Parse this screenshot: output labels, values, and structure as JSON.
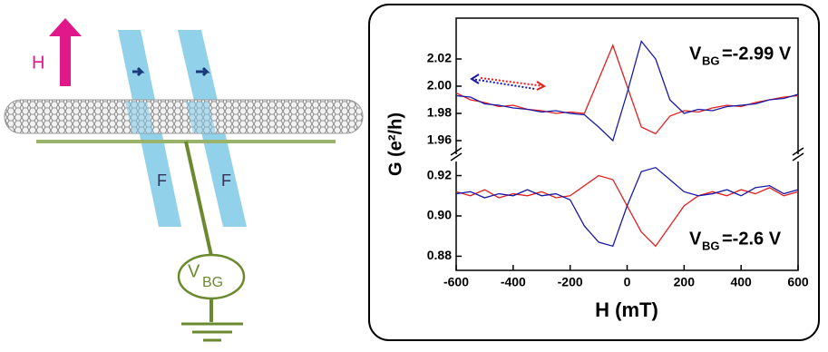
{
  "diagram": {
    "field_label": "H",
    "electrode_labels": [
      "F",
      "F"
    ],
    "gate_label": "V",
    "gate_subscript": "BG"
  },
  "chart_data": {
    "type": "line",
    "xlabel": "H (mT)",
    "ylabel": "G (e²/h)",
    "x": [
      -600,
      -550,
      -500,
      -450,
      -400,
      -350,
      -300,
      -250,
      -200,
      -150,
      -100,
      -50,
      0,
      50,
      100,
      150,
      200,
      250,
      300,
      350,
      400,
      450,
      500,
      550,
      600
    ],
    "xlim": [
      -600,
      600
    ],
    "xticks": [
      -600,
      -400,
      -200,
      0,
      200,
      400,
      600
    ],
    "panels": [
      {
        "ylim": [
          1.95,
          2.05
        ],
        "yticks": [
          1.96,
          1.98,
          {
            "value": 2,
            "label": "2.00"
          },
          2.02
        ],
        "annotation": {
          "text": "V",
          "subscript": "BG",
          "suffix": " =-2.99 V"
        },
        "series": [
          {
            "color": "#e02020",
            "values": [
              1.995,
              1.99,
              1.988,
              1.985,
              1.986,
              1.983,
              1.982,
              1.98,
              1.981,
              1.98,
              2.005,
              2.03,
              2.0,
              1.97,
              1.965,
              1.978,
              1.982,
              1.981,
              1.984,
              1.986,
              1.985,
              1.988,
              1.99,
              1.992,
              1.993
            ]
          },
          {
            "color": "#1a1aa8",
            "values": [
              1.993,
              1.992,
              1.987,
              1.986,
              1.984,
              1.983,
              1.981,
              1.982,
              1.98,
              1.979,
              1.97,
              1.96,
              1.995,
              2.033,
              2.02,
              1.99,
              1.98,
              1.983,
              1.982,
              1.985,
              1.986,
              1.987,
              1.99,
              1.991,
              1.994
            ]
          }
        ]
      },
      {
        "ylim": [
          0.873,
          0.927
        ],
        "yticks": [
          0.88,
          {
            "value": 0.9,
            "label": "0.90"
          },
          0.92
        ],
        "annotation": {
          "text": "V",
          "subscript": "BG",
          "suffix": " =-2.6 V"
        },
        "series": [
          {
            "color": "#e02020",
            "values": [
              0.912,
              0.91,
              0.913,
              0.909,
              0.911,
              0.91,
              0.912,
              0.909,
              0.91,
              0.915,
              0.92,
              0.918,
              0.905,
              0.892,
              0.885,
              0.895,
              0.905,
              0.91,
              0.912,
              0.91,
              0.913,
              0.911,
              0.914,
              0.91,
              0.912
            ]
          },
          {
            "color": "#1a1aa8",
            "values": [
              0.911,
              0.912,
              0.909,
              0.911,
              0.91,
              0.913,
              0.91,
              0.911,
              0.908,
              0.895,
              0.887,
              0.885,
              0.905,
              0.922,
              0.924,
              0.918,
              0.912,
              0.91,
              0.911,
              0.913,
              0.91,
              0.914,
              0.915,
              0.911,
              0.913
            ]
          }
        ]
      }
    ]
  }
}
